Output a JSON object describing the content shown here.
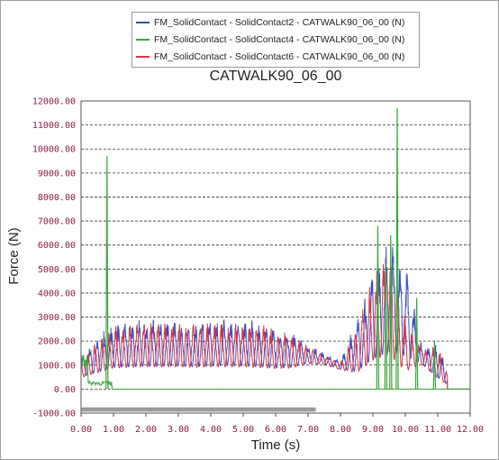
{
  "chart_data": {
    "type": "line",
    "title": "CATWALK90_06_00",
    "xlabel": "Time (s)",
    "ylabel": "Force (N)",
    "xlim": [
      0,
      12
    ],
    "ylim": [
      -1000,
      12000
    ],
    "grid": "horizontal dashed",
    "legend_position": "top",
    "x_ticks": [
      "0.00",
      "1.00",
      "2.00",
      "3.00",
      "4.00",
      "5.00",
      "6.00",
      "7.00",
      "8.00",
      "9.00",
      "10.00",
      "11.00",
      "12.00"
    ],
    "y_ticks": [
      "-1000.00",
      "0.00",
      "1000.00",
      "2000.00",
      "3000.00",
      "4000.00",
      "5000.00",
      "6000.00",
      "7000.00",
      "8000.00",
      "9000.00",
      "10000.00",
      "11000.00",
      "12000.00"
    ],
    "series": [
      {
        "name": "FM_SolidContact - SolidContact2 - CATWALK90_06_00 (N)",
        "color": "#3a4fb8",
        "envelope_x": [
          0.0,
          0.5,
          1.0,
          1.5,
          2.0,
          2.5,
          3.0,
          3.5,
          4.0,
          4.5,
          5.0,
          5.5,
          6.0,
          6.5,
          7.0,
          7.5,
          8.0,
          8.5,
          9.0,
          9.5,
          10.0,
          10.5,
          11.0,
          11.5,
          12.0
        ],
        "envelope_max": [
          1400,
          2200,
          2700,
          2800,
          2900,
          2900,
          2900,
          2800,
          2900,
          3000,
          2900,
          2800,
          2600,
          2400,
          1900,
          1500,
          1200,
          2900,
          5000,
          6200,
          5500,
          1800,
          1900,
          0,
          0
        ],
        "envelope_min": [
          200,
          200,
          300,
          300,
          300,
          300,
          300,
          300,
          300,
          300,
          300,
          300,
          300,
          400,
          800,
          900,
          700,
          0,
          0,
          0,
          0,
          800,
          0,
          0,
          0
        ]
      },
      {
        "name": "FM_SolidContact - SolidContact4 - CATWALK90_06_00 (N)",
        "color": "#3aa63a",
        "spikes": [
          {
            "x": 0.8,
            "y": 9700
          },
          {
            "x": 9.15,
            "y": 6800
          },
          {
            "x": 9.4,
            "y": 5200
          },
          {
            "x": 9.55,
            "y": 6400
          },
          {
            "x": 9.75,
            "y": 11700
          },
          {
            "x": 10.35,
            "y": 3800
          },
          {
            "x": 10.9,
            "y": 2000
          }
        ]
      },
      {
        "name": "FM_SolidContact - SolidContact6 - CATWALK90_06_00 (N)",
        "color": "#d9334a",
        "envelope_x": [
          0.0,
          0.5,
          1.0,
          1.5,
          2.0,
          2.5,
          3.0,
          3.5,
          4.0,
          4.5,
          5.0,
          5.5,
          6.0,
          6.5,
          7.0,
          7.5,
          8.0,
          8.5,
          9.0,
          9.5,
          10.0,
          10.5,
          11.0,
          11.5,
          12.0
        ],
        "envelope_max": [
          1300,
          2100,
          2600,
          2700,
          2800,
          2800,
          2800,
          2700,
          2800,
          2800,
          2800,
          2700,
          2500,
          2300,
          1800,
          1400,
          1100,
          2700,
          4800,
          5800,
          3000,
          1700,
          1800,
          0,
          0
        ],
        "envelope_min": [
          200,
          200,
          300,
          300,
          300,
          300,
          300,
          300,
          300,
          300,
          300,
          300,
          300,
          400,
          800,
          900,
          700,
          0,
          0,
          0,
          0,
          800,
          0,
          0,
          0
        ]
      }
    ]
  }
}
